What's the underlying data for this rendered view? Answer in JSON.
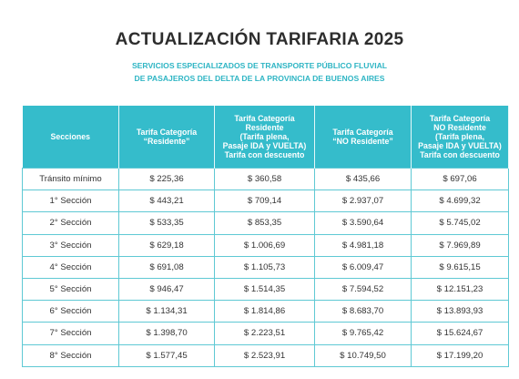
{
  "title": "ACTUALIZACIÓN TARIFARIA 2025",
  "subtitle": [
    "SERVICIOS ESPECIALIZADOS DE TRANSPORTE PÚBLICO FLUVIAL",
    "DE PASAJEROS DEL DELTA DE LA PROVINCIA DE BUENOS AIRES"
  ],
  "table": {
    "header": [
      [
        "Secciones"
      ],
      [
        "Tarifa Categoría",
        "“Residente”"
      ],
      [
        "Tarifa Categoría",
        "Residente",
        "(Tarifa plena,",
        "Pasaje IDA y VUELTA)",
        "Tarifa con descuento"
      ],
      [
        "Tarifa Categoría",
        "“NO Residente”"
      ],
      [
        "Tarifa Categoría",
        "NO Residente",
        "(Tarifa plena,",
        "Pasaje IDA y VUELTA)",
        "Tarifa con descuento"
      ]
    ],
    "rows": [
      [
        "Tránsito mínimo",
        "$ 225,36",
        "$ 360,58",
        "$ 435,66",
        "$ 697,06"
      ],
      [
        "1° Sección",
        "$ 443,21",
        "$ 709,14",
        "$ 2.937,07",
        "$ 4.699,32"
      ],
      [
        "2° Sección",
        "$ 533,35",
        "$ 853,35",
        "$ 3.590,64",
        "$ 5.745,02"
      ],
      [
        "3° Sección",
        "$ 629,18",
        "$ 1.006,69",
        "$ 4.981,18",
        "$ 7.969,89"
      ],
      [
        "4° Sección",
        "$ 691,08",
        "$ 1.105,73",
        "$ 6.009,47",
        "$ 9.615,15"
      ],
      [
        "5° Sección",
        "$ 946,47",
        "$ 1.514,35",
        "$ 7.594,52",
        "$ 12.151,23"
      ],
      [
        "6° Sección",
        "$ 1.134,31",
        "$ 1.814,86",
        "$ 8.683,70",
        "$ 13.893,93"
      ],
      [
        "7° Sección",
        "$ 1.398,70",
        "$ 2.223,51",
        "$ 9.765,42",
        "$ 15.624,67"
      ],
      [
        "8° Sección",
        "$ 1.577,45",
        "$ 2.523,91",
        "$ 10.749,50",
        "$ 17.199,20"
      ]
    ]
  }
}
